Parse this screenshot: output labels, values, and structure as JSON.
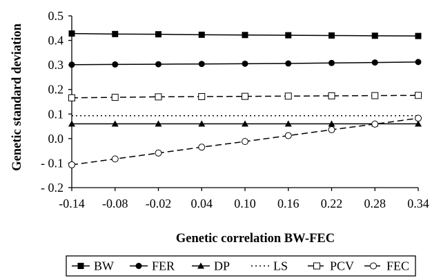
{
  "chart_data": {
    "type": "line",
    "xlabel": "Genetic correlation BW-FEC",
    "ylabel": "Genetic standard deviation",
    "xlim": [
      -0.14,
      0.34
    ],
    "ylim": [
      -0.2,
      0.5
    ],
    "x": [
      -0.14,
      -0.08,
      -0.02,
      0.04,
      0.1,
      0.16,
      0.22,
      0.28,
      0.34
    ],
    "x_tick_labels": [
      "-0.14",
      "-0.08",
      "-0.02",
      "0.04",
      "0.10",
      "0.16",
      "0.22",
      "0.28",
      "0.34"
    ],
    "y_ticks": [
      -0.2,
      -0.1,
      0.0,
      0.1,
      0.2,
      0.3,
      0.4,
      0.5
    ],
    "y_tick_labels": [
      "- 0.2",
      "- 0.1",
      "0.0",
      "0.1",
      "0.2",
      "0.3",
      "0.4",
      "0.5"
    ],
    "grid": false,
    "legend_position": "bottom",
    "series": [
      {
        "name": "BW",
        "marker": "filled-square",
        "dash": "solid",
        "markers": true,
        "values": [
          0.428,
          0.426,
          0.425,
          0.423,
          0.422,
          0.421,
          0.42,
          0.419,
          0.418
        ]
      },
      {
        "name": "FER",
        "marker": "filled-circle",
        "dash": "solid",
        "markers": true,
        "values": [
          0.301,
          0.302,
          0.303,
          0.304,
          0.305,
          0.306,
          0.308,
          0.31,
          0.312
        ]
      },
      {
        "name": "DP",
        "marker": "filled-triangle",
        "dash": "solid",
        "markers": true,
        "values": [
          0.06,
          0.06,
          0.06,
          0.06,
          0.06,
          0.06,
          0.06,
          0.06,
          0.06
        ]
      },
      {
        "name": "LS",
        "marker": "none",
        "dash": "dotted",
        "markers": false,
        "values": [
          0.093,
          0.093,
          0.093,
          0.093,
          0.093,
          0.093,
          0.093,
          0.093,
          0.093
        ]
      },
      {
        "name": "PCV",
        "marker": "open-square",
        "dash": "dashed",
        "markers": true,
        "values": [
          0.166,
          0.168,
          0.17,
          0.171,
          0.172,
          0.173,
          0.174,
          0.175,
          0.176
        ]
      },
      {
        "name": "FEC",
        "marker": "open-circle",
        "dash": "dashed",
        "markers": true,
        "values": [
          -0.107,
          -0.083,
          -0.059,
          -0.035,
          -0.012,
          0.012,
          0.036,
          0.059,
          0.083
        ]
      }
    ]
  }
}
